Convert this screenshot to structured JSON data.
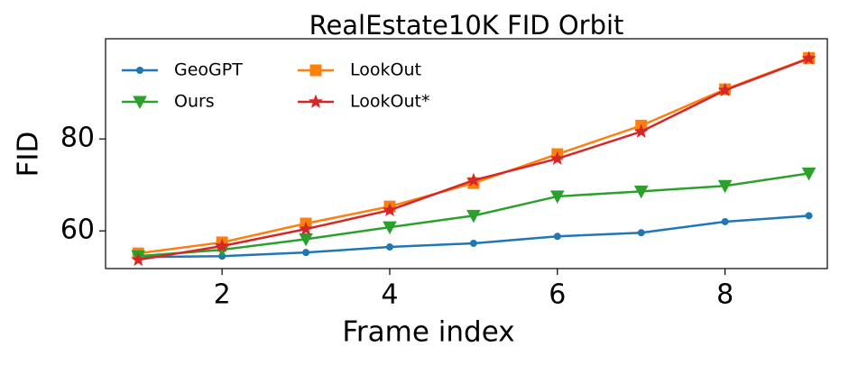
{
  "chart_data": {
    "type": "line",
    "title": "RealEstate10K FID Orbit",
    "x_label": "Frame index",
    "y_label": "FID",
    "x": [
      1,
      2,
      3,
      4,
      5,
      6,
      7,
      8,
      9
    ],
    "series": [
      {
        "name": "GeoGPT",
        "color": "#1f77b4",
        "marker": "circle",
        "values": [
          54.3,
          54.5,
          55.3,
          56.5,
          57.3,
          58.8,
          59.6,
          62.0,
          63.3
        ]
      },
      {
        "name": "LookOut",
        "color": "#ff7f0e",
        "marker": "square",
        "values": [
          55.1,
          57.5,
          61.6,
          65.3,
          70.4,
          76.7,
          82.9,
          90.8,
          97.6
        ]
      },
      {
        "name": "Ours",
        "color": "#2ca02c",
        "marker": "triangle",
        "values": [
          54.5,
          55.9,
          58.2,
          60.8,
          63.3,
          67.5,
          68.6,
          69.8,
          72.5
        ]
      },
      {
        "name": "LookOut*",
        "color": "#d62728",
        "marker": "star",
        "values": [
          53.7,
          56.7,
          60.4,
          64.5,
          71.0,
          75.7,
          81.6,
          90.6,
          97.5
        ]
      }
    ],
    "xlim": [
      0.61,
      9.22
    ],
    "xticks": [
      2,
      4,
      6,
      8
    ],
    "ylim": [
      51.8,
      101.8
    ],
    "yticks": [
      60,
      80
    ],
    "legend": "upper-left",
    "grid": false
  }
}
